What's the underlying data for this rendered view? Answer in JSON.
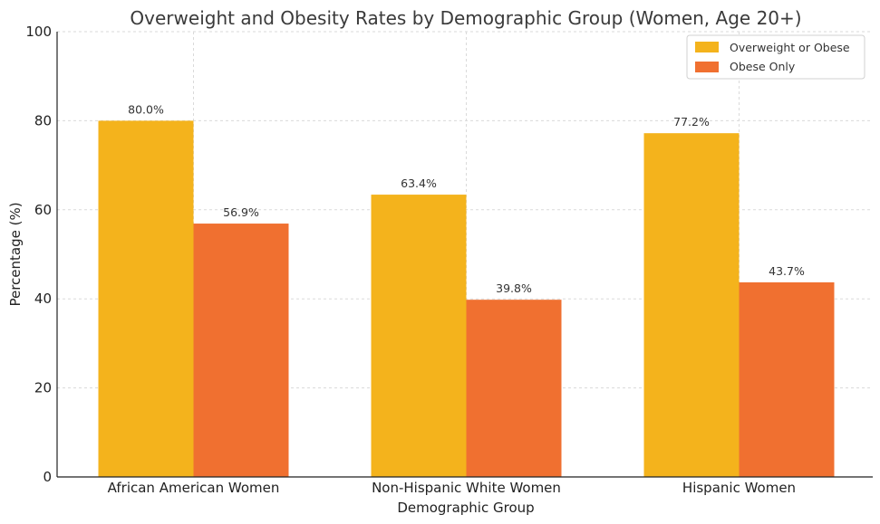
{
  "chart_data": {
    "type": "bar",
    "title": "Overweight and Obesity Rates by Demographic Group (Women, Age 20+)",
    "xlabel": "Demographic Group",
    "ylabel": "Percentage (%)",
    "ylim": [
      0,
      100
    ],
    "yticks": [
      0,
      20,
      40,
      60,
      80,
      100
    ],
    "categories": [
      "African American Women",
      "Non-Hispanic White Women",
      "Hispanic Women"
    ],
    "series": [
      {
        "name": "Overweight or Obese",
        "values": [
          80.0,
          63.4,
          77.2
        ],
        "labels": [
          "80.0%",
          "63.4%",
          "77.2%"
        ],
        "color": "#F4B31C"
      },
      {
        "name": "Obese Only",
        "values": [
          56.9,
          39.8,
          43.7
        ],
        "labels": [
          "56.9%",
          "39.8%",
          "43.7%"
        ],
        "color": "#F07030"
      }
    ],
    "grid": true,
    "legend_position": "top-right"
  }
}
